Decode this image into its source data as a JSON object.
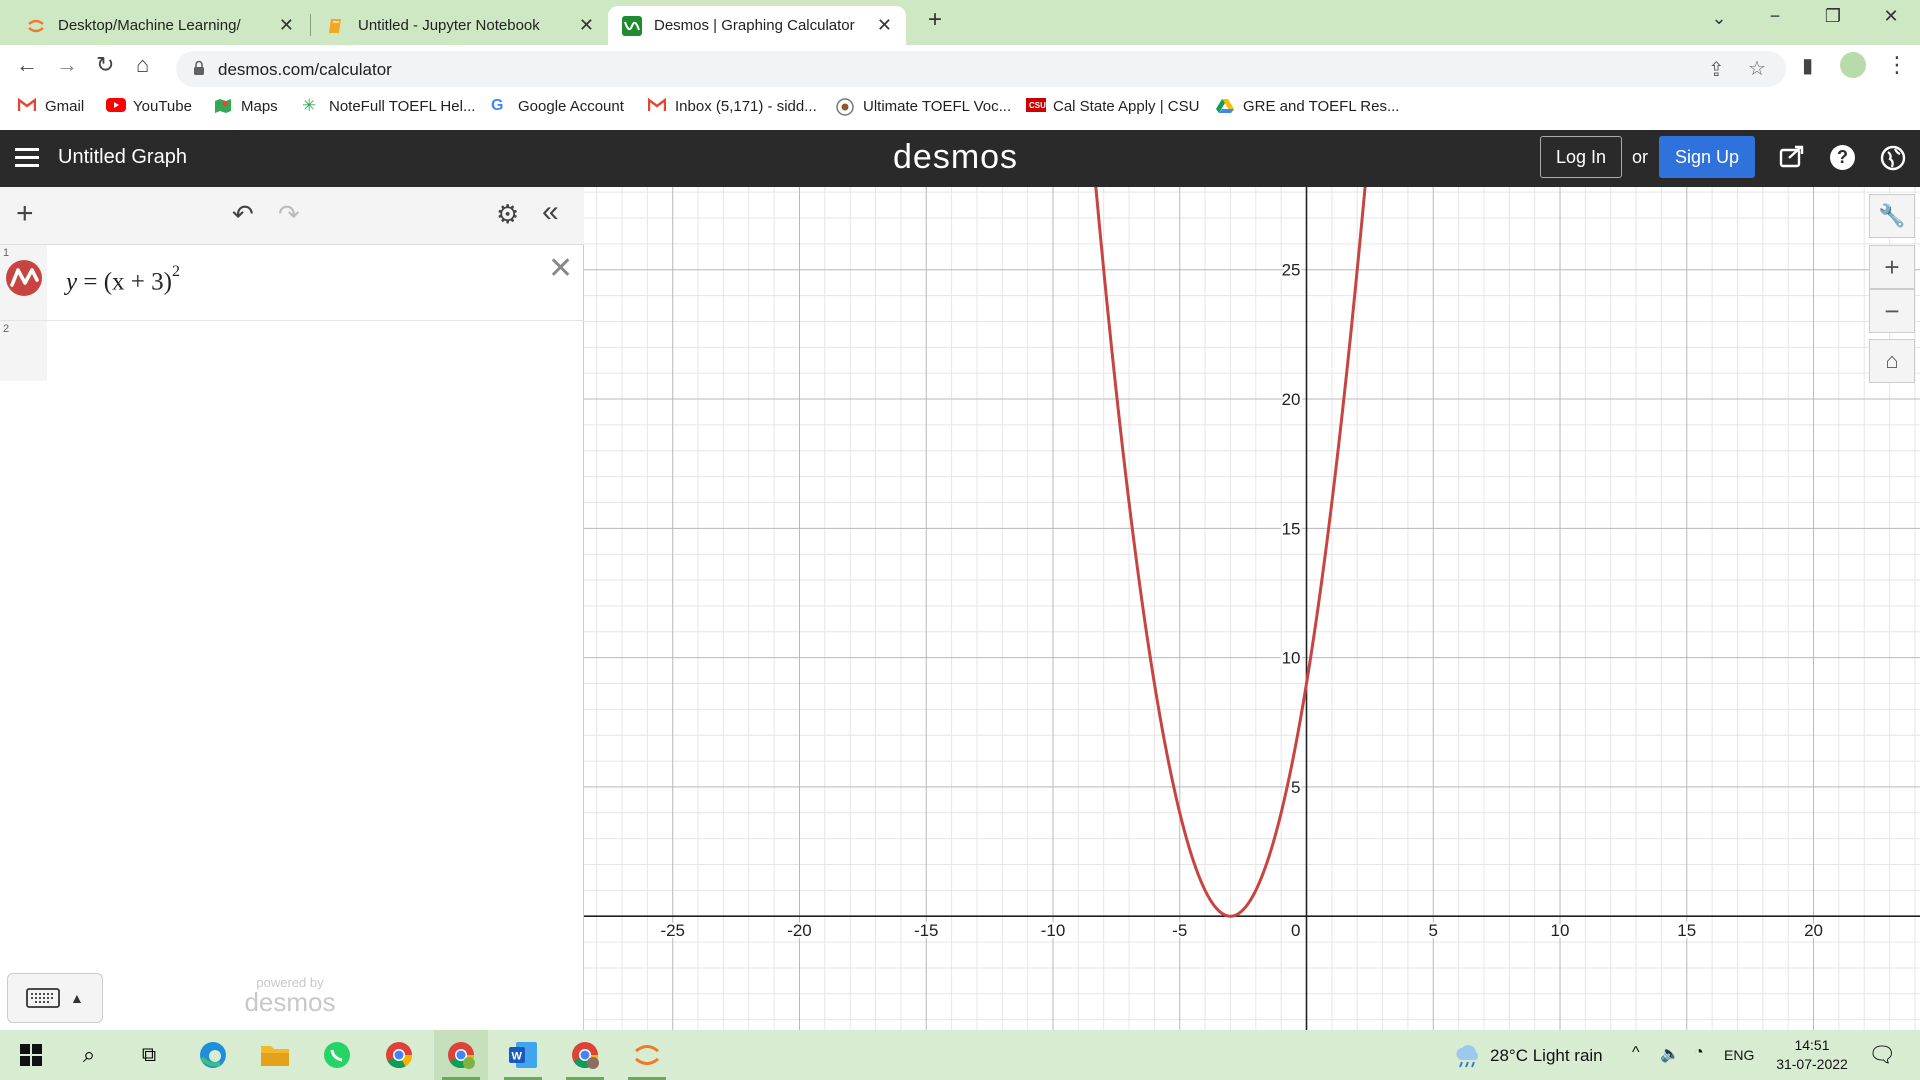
{
  "browser": {
    "tabs": [
      {
        "title": "Desktop/Machine Learning/",
        "icon": "jupyter-icon",
        "active": false
      },
      {
        "title": "Untitled - Jupyter Notebook",
        "icon": "notebook-icon",
        "active": false
      },
      {
        "title": "Desmos | Graphing Calculator",
        "icon": "desmos-icon",
        "active": true
      }
    ],
    "new_tab_label": "+",
    "url": "desmos.com/calculator",
    "bookmarks": [
      {
        "label": "Gmail",
        "icon": "gmail-icon"
      },
      {
        "label": "YouTube",
        "icon": "youtube-icon"
      },
      {
        "label": "Maps",
        "icon": "maps-icon"
      },
      {
        "label": "NoteFull TOEFL Hel...",
        "icon": "notefull-icon"
      },
      {
        "label": "Google Account",
        "icon": "google-icon"
      },
      {
        "label": "Inbox (5,171) - sidd...",
        "icon": "gmail-icon"
      },
      {
        "label": "Ultimate TOEFL Voc...",
        "icon": "toefl-icon"
      },
      {
        "label": "Cal State Apply | CSU",
        "icon": "csu-icon"
      },
      {
        "label": "GRE and TOEFL Res...",
        "icon": "drive-icon"
      }
    ]
  },
  "desmos": {
    "graph_title": "Untitled Graph",
    "brand": "desmos",
    "login_label": "Log In",
    "or_label": "or",
    "signup_label": "Sign Up",
    "expressions": [
      {
        "index": "1",
        "color": "#c74440",
        "lhs": "y",
        "rhs": "= (x + 3)",
        "exponent": "2"
      },
      {
        "index": "2"
      }
    ],
    "powered_by": "powered by",
    "powered_brand": "desmos"
  },
  "chart_data": {
    "type": "line",
    "function": "y = (x + 3)^2",
    "series": [
      {
        "color": "#c74440",
        "expression": "(x+3)^2"
      }
    ],
    "xlim": [
      -28.5,
      24.2
    ],
    "ylim": [
      -4.4,
      28.2
    ],
    "x_ticks": [
      -25,
      -20,
      -15,
      -10,
      -5,
      0,
      5,
      10,
      15,
      20
    ],
    "y_ticks": [
      5,
      10,
      15,
      20,
      25
    ],
    "x_tick_labels": [
      "-25",
      "-20",
      "-15",
      "-10",
      "-5",
      "0",
      "5",
      "10",
      "15",
      "20"
    ],
    "y_tick_labels": [
      "5",
      "10",
      "15",
      "20",
      "25"
    ],
    "minor_grid_step": 1,
    "major_grid_step": 5,
    "grid": true
  },
  "taskbar": {
    "weather": "28°C  Light rain",
    "lang": "ENG",
    "time": "14:51",
    "date": "31-07-2022"
  }
}
